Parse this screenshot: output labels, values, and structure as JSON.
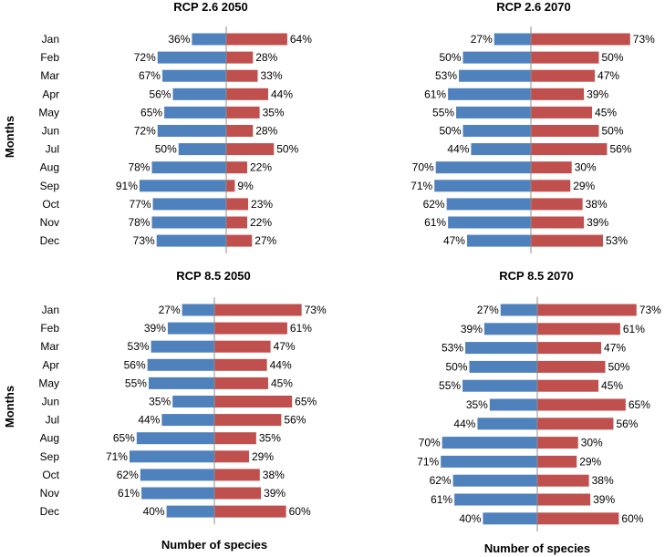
{
  "chart_data": [
    {
      "type": "bar",
      "orientation": "horizontal-diverging",
      "title": "RCP 2.6 2050",
      "ylabel": "Months",
      "xlabel": "",
      "categories": [
        "Jan",
        "Feb",
        "Mar",
        "Apr",
        "May",
        "Jun",
        "Jul",
        "Aug",
        "Sep",
        "Oct",
        "Nov",
        "Dec"
      ],
      "series": [
        {
          "name": "left",
          "color": "#4f81bd",
          "values": [
            36,
            72,
            67,
            56,
            65,
            72,
            50,
            78,
            91,
            77,
            78,
            73
          ]
        },
        {
          "name": "right",
          "color": "#c0504d",
          "values": [
            64,
            28,
            33,
            44,
            35,
            28,
            50,
            22,
            9,
            23,
            22,
            27
          ]
        }
      ]
    },
    {
      "type": "bar",
      "orientation": "horizontal-diverging",
      "title": "RCP 2.6 2070",
      "ylabel": "",
      "xlabel": "",
      "categories": [
        "",
        "",
        "",
        "",
        "",
        "",
        "",
        "",
        "",
        "",
        "",
        ""
      ],
      "series": [
        {
          "name": "left",
          "color": "#4f81bd",
          "values": [
            27,
            50,
            53,
            61,
            55,
            50,
            44,
            70,
            71,
            62,
            61,
            47
          ]
        },
        {
          "name": "right",
          "color": "#c0504d",
          "values": [
            73,
            50,
            47,
            39,
            45,
            50,
            56,
            30,
            29,
            38,
            39,
            53
          ]
        }
      ]
    },
    {
      "type": "bar",
      "orientation": "horizontal-diverging",
      "title": "RCP 8.5 2050",
      "ylabel": "Months",
      "xlabel": "Number of species",
      "categories": [
        "Jan",
        "Feb",
        "Mar",
        "Apr",
        "May",
        "Jun",
        "Jul",
        "Aug",
        "Sep",
        "Oct",
        "Nov",
        "Dec"
      ],
      "series": [
        {
          "name": "left",
          "color": "#4f81bd",
          "values": [
            27,
            39,
            53,
            56,
            55,
            35,
            44,
            65,
            71,
            62,
            61,
            40
          ]
        },
        {
          "name": "right",
          "color": "#c0504d",
          "values": [
            73,
            61,
            47,
            44,
            45,
            65,
            56,
            35,
            29,
            38,
            39,
            60
          ]
        }
      ]
    },
    {
      "type": "bar",
      "orientation": "horizontal-diverging",
      "title": "RCP 8.5 2070",
      "ylabel": "",
      "xlabel": "Number of species",
      "categories": [
        "",
        "",
        "",
        "",
        "",
        "",
        "",
        "",
        "",
        "",
        "",
        ""
      ],
      "series": [
        {
          "name": "left",
          "color": "#4f81bd",
          "values": [
            27,
            39,
            53,
            50,
            55,
            35,
            44,
            70,
            71,
            62,
            61,
            40
          ]
        },
        {
          "name": "right",
          "color": "#c0504d",
          "values": [
            73,
            61,
            47,
            50,
            45,
            65,
            56,
            30,
            29,
            38,
            39,
            60
          ]
        }
      ]
    }
  ],
  "value_suffix": "%"
}
